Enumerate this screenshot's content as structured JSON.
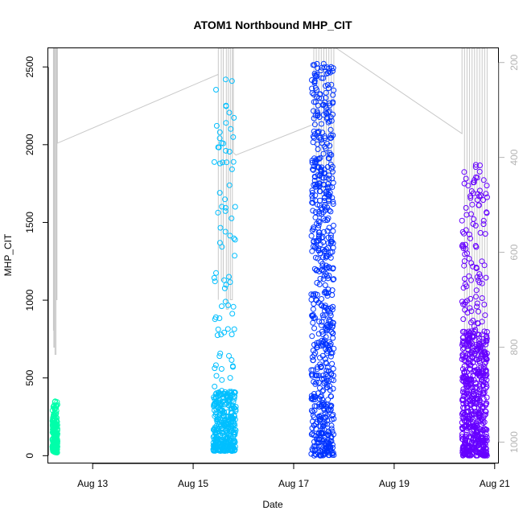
{
  "chart_data": {
    "type": "scatter",
    "title": "ATOM1 Northbound MHP_CIT",
    "xlabel": "Date",
    "ylabel": "MHP_CIT",
    "xlim": [
      "2023-08-12 02:48",
      "2023-08-21 02:00"
    ],
    "ylim": [
      -50,
      2620
    ],
    "y2lim": [
      1045,
      170
    ],
    "y2_reversed": true,
    "x_ticks": [
      "Aug 13",
      "Aug 15",
      "Aug 17",
      "Aug 19",
      "Aug 21"
    ],
    "x_tick_dates": [
      "2023-08-13",
      "2023-08-15",
      "2023-08-17",
      "2023-08-19",
      "2023-08-21"
    ],
    "y_ticks": [
      0,
      500,
      1000,
      1500,
      2000,
      2500
    ],
    "y2_ticks": [
      200,
      400,
      600,
      800,
      1000
    ],
    "grid": false,
    "legend": "none",
    "marker": "open-circle",
    "line_series_color": "#c8c8c8",
    "series": [
      {
        "x_start": "2023-08-12 04:48",
        "x_end": "2023-08-12 07:12",
        "y_min": 0,
        "y_max": 350,
        "y_typical": [
          20,
          230
        ],
        "color": "#00ffaa"
      },
      {
        "x_start": "2023-08-15 09:36",
        "x_end": "2023-08-15 20:24",
        "y_min": 0,
        "y_max": 2420,
        "y_typical": [
          30,
          420
        ],
        "color": "#00bfff"
      },
      {
        "x_start": "2023-08-17 08:24",
        "x_end": "2023-08-17 19:12",
        "y_min": 0,
        "y_max": 2520,
        "y_typical": [
          0,
          1800
        ],
        "color": "#0033ff"
      },
      {
        "x_start": "2023-08-20 08:24",
        "x_end": "2023-08-20 20:24",
        "y_min": 0,
        "y_max": 1870,
        "y_typical": [
          0,
          800
        ],
        "color": "#6600ff"
      }
    ],
    "line_series": {
      "axis": "right",
      "reversed": true,
      "points": [
        [
          "2023-08-12 05:16",
          765
        ],
        [
          "2023-08-12 05:16",
          170
        ],
        [
          "2023-08-12 05:28",
          170
        ],
        [
          "2023-08-12 05:28",
          800
        ],
        [
          "2023-08-12 05:45",
          800
        ],
        [
          "2023-08-12 05:45",
          170
        ],
        [
          "2023-08-12 06:00",
          170
        ],
        [
          "2023-08-12 06:00",
          815
        ],
        [
          "2023-08-12 06:29",
          815
        ],
        [
          "2023-08-12 06:29",
          170
        ],
        [
          "2023-08-12 06:43",
          170
        ],
        [
          "2023-08-12 06:43",
          700
        ],
        [
          "2023-08-12 06:58",
          700
        ],
        [
          "2023-08-12 06:58",
          170
        ],
        [
          "2023-08-12 07:12",
          170
        ],
        [
          "2023-08-12 07:12",
          370
        ],
        [
          "2023-08-15 12:00",
          225
        ],
        [
          "2023-08-15 12:00",
          700
        ],
        [
          "2023-08-15 12:00",
          170
        ],
        [
          "2023-08-15 13:26",
          170
        ],
        [
          "2023-08-15 13:26",
          660
        ],
        [
          "2023-08-15 14:24",
          660
        ],
        [
          "2023-08-15 14:24",
          170
        ],
        [
          "2023-08-15 15:50",
          170
        ],
        [
          "2023-08-15 15:50",
          720
        ],
        [
          "2023-08-15 16:48",
          720
        ],
        [
          "2023-08-15 16:48",
          170
        ],
        [
          "2023-08-15 17:46",
          170
        ],
        [
          "2023-08-15 17:46",
          700
        ],
        [
          "2023-08-15 18:43",
          700
        ],
        [
          "2023-08-15 18:43",
          170
        ],
        [
          "2023-08-15 19:12",
          170
        ],
        [
          "2023-08-15 19:12",
          390
        ],
        [
          "2023-08-15 20:24",
          395
        ],
        [
          "2023-08-17 09:36",
          330
        ],
        [
          "2023-08-17 09:36",
          170
        ],
        [
          "2023-08-17 10:48",
          170
        ],
        [
          "2023-08-17 10:48",
          460
        ],
        [
          "2023-08-17 12:00",
          460
        ],
        [
          "2023-08-17 12:00",
          170
        ],
        [
          "2023-08-17 13:12",
          170
        ],
        [
          "2023-08-17 13:12",
          480
        ],
        [
          "2023-08-17 14:24",
          480
        ],
        [
          "2023-08-17 14:24",
          170
        ],
        [
          "2023-08-17 15:36",
          170
        ],
        [
          "2023-08-17 15:36",
          500
        ],
        [
          "2023-08-17 16:48",
          500
        ],
        [
          "2023-08-17 16:48",
          170
        ],
        [
          "2023-08-17 18:00",
          170
        ],
        [
          "2023-08-17 18:00",
          450
        ],
        [
          "2023-08-17 19:12",
          450
        ],
        [
          "2023-08-17 19:12",
          170
        ],
        [
          "2023-08-17 20:24",
          170
        ],
        [
          "2023-08-20 08:24",
          350
        ],
        [
          "2023-08-20 08:24",
          170
        ],
        [
          "2023-08-20 09:36",
          170
        ],
        [
          "2023-08-20 09:36",
          850
        ],
        [
          "2023-08-20 10:48",
          850
        ],
        [
          "2023-08-20 10:48",
          170
        ],
        [
          "2023-08-20 12:00",
          170
        ],
        [
          "2023-08-20 12:00",
          810
        ],
        [
          "2023-08-20 13:12",
          810
        ],
        [
          "2023-08-20 13:12",
          170
        ],
        [
          "2023-08-20 14:24",
          170
        ],
        [
          "2023-08-20 14:24",
          830
        ],
        [
          "2023-08-20 15:36",
          830
        ],
        [
          "2023-08-20 15:36",
          170
        ],
        [
          "2023-08-20 16:48",
          170
        ],
        [
          "2023-08-20 16:48",
          850
        ],
        [
          "2023-08-20 18:00",
          850
        ],
        [
          "2023-08-20 18:00",
          170
        ],
        [
          "2023-08-20 19:12",
          170
        ],
        [
          "2023-08-20 19:12",
          860
        ],
        [
          "2023-08-20 20:24",
          860
        ],
        [
          "2023-08-20 20:24",
          170
        ]
      ]
    }
  }
}
